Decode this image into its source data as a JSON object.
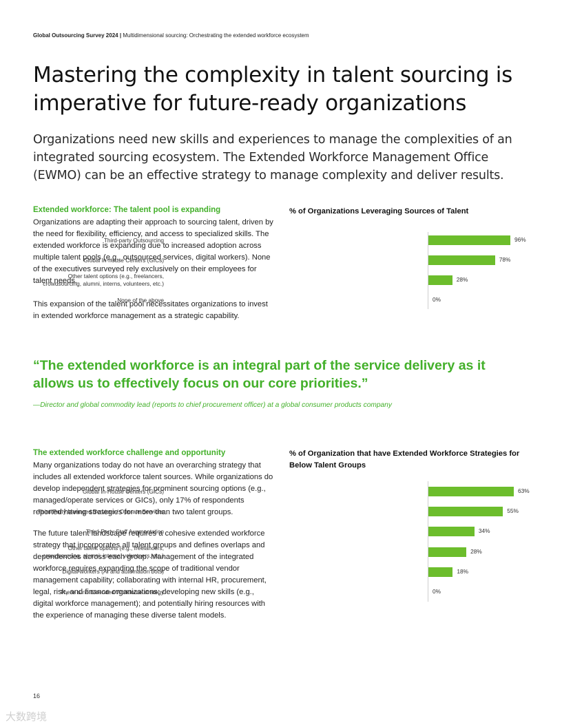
{
  "header": {
    "report": "Global Outsourcing Survey 2024",
    "separator": "|",
    "section": "Multidimensional sourcing: Orchestrating the extended workforce ecosystem"
  },
  "title_lines": [
    "Mastering the complexity in talent sourcing is",
    "imperative for future-ready organizations"
  ],
  "subtitle": "Organizations need new skills and experiences to manage the complexities of an integrated sourcing ecosystem. The Extended Workforce Management Office (EWMO) can be an effective strategy to manage complexity and deliver results.",
  "section1": {
    "heading": "Extended workforce: The talent pool is expanding",
    "paragraphs": [
      "Organizations are adapting their approach to sourcing talent, driven by the need for flexibility, efficiency, and access to specialized skills. The extended workforce is expanding due to increased adoption across multiple talent pools (e.g., outsourced services, digital workers). None of the executives surveyed rely exclusively on their employees for talent needs.",
      "This expansion of the talent pool necessitates organizations to invest in extended workforce management as a strategic capability."
    ]
  },
  "quote": {
    "text": "“The extended workforce is an integral part of the service delivery as it allows us to effectively focus on our core priorities.”",
    "attribution": "—Director and global commodity lead (reports to chief procurement officer) at a global consumer products company"
  },
  "section2": {
    "heading": "The extended workforce challenge and opportunity",
    "paragraphs": [
      "Many organizations today do not have an overarching strategy that includes all extended workforce talent sources. While organizations do develop independent strategies for prominent sourcing options (e.g., managed/operate services or GICs), only 17% of respondents reported having strategies for more than two talent groups.",
      "The future talent landscape requires a cohesive extended workforce strategy that incorporates all talent groups and defines overlaps and dependencies across each group. Management of the integrated workforce requires expanding the scope of traditional vendor management capability; collaborating with internal HR, procurement, legal, risk, and finance organizations; developing new skills (e.g., digital workforce management); and potentially hiring resources with the experience of managing these diverse talent models."
    ]
  },
  "chart_data": [
    {
      "type": "bar",
      "orientation": "horizontal",
      "title": "% of Organizations Leveraging Sources of Talent",
      "categories": [
        [
          "Third-party Outsourcing"
        ],
        [
          "Global In-house Centers (GICs)"
        ],
        [
          "Other talent options (e.g., freelancers,",
          "crowdsourcing, alumni, interns, volunteers, etc.)"
        ],
        [
          "None of the above"
        ]
      ],
      "values": [
        96,
        78,
        28,
        0
      ],
      "value_labels": [
        "96%",
        "78%",
        "28%",
        "0%"
      ],
      "xlim": [
        0,
        100
      ],
      "color": "#6cbd2c"
    },
    {
      "type": "bar",
      "orientation": "horizontal",
      "title": "% of Organization that have Extended Workforce Strategies for Below Talent Groups",
      "categories": [
        [
          "Global In-House Centers (GICs)"
        ],
        [
          "Third-Party Managed Services / Operate Services"
        ],
        [
          "Third-Party Staff Augmentation"
        ],
        [
          "Other talent options (e.g., freelancers,",
          "crowdsourcing, alumni, interns, volunteers, etc.)"
        ],
        [
          "Digital workers (AI and automation bots)"
        ],
        [
          "There is no Extended Workforce strategy"
        ]
      ],
      "values": [
        63,
        55,
        34,
        28,
        18,
        0
      ],
      "value_labels": [
        "63%",
        "55%",
        "34%",
        "28%",
        "18%",
        "0%"
      ],
      "xlim": [
        0,
        63
      ],
      "color": "#6cbd2c"
    }
  ],
  "page_number": "16",
  "watermark": "大数跨境"
}
